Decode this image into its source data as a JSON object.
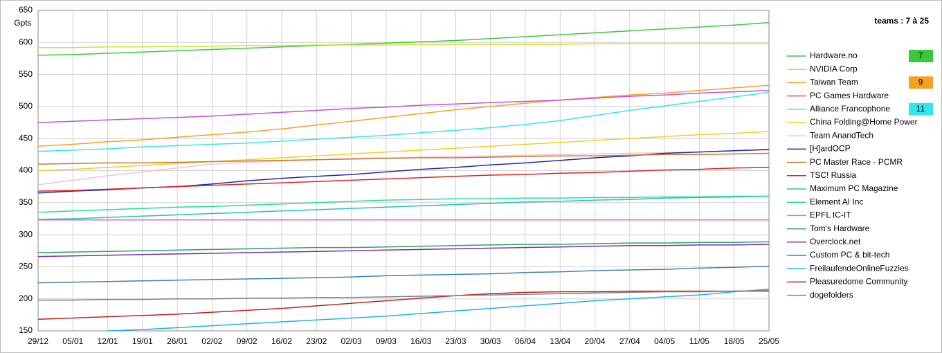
{
  "chart_data": {
    "type": "line",
    "y_label": "Gpts",
    "panel_title": "teams : 7 à 25",
    "categories": [
      "29/12",
      "05/01",
      "12/01",
      "19/01",
      "26/01",
      "02/02",
      "09/02",
      "16/02",
      "23/02",
      "02/03",
      "09/03",
      "16/03",
      "23/03",
      "30/03",
      "06/04",
      "13/04",
      "20/04",
      "27/04",
      "04/05",
      "11/05",
      "18/05",
      "25/05"
    ],
    "ylim": [
      150,
      650
    ],
    "yticks": [
      150,
      200,
      250,
      300,
      350,
      400,
      450,
      500,
      550,
      600,
      650
    ],
    "grid": true,
    "series": [
      {
        "name": "Hardware.no",
        "color": "#3cc83c",
        "badge": 7,
        "values": [
          580,
          581,
          583,
          585,
          587,
          589,
          591,
          593,
          595,
          597,
          599,
          601,
          603,
          606,
          609,
          612,
          615,
          618,
          621,
          624,
          627,
          631
        ]
      },
      {
        "name": "NVIDIA Corp",
        "color": "#c8e632",
        "values": [
          592,
          592,
          593,
          593,
          594,
          594,
          595,
          595,
          596,
          596,
          596,
          597,
          597,
          597,
          597,
          597,
          598,
          598,
          598,
          598,
          598,
          598
        ]
      },
      {
        "name": "Taiwan Team",
        "color": "#f5a020",
        "badge": 9,
        "values": [
          438,
          441,
          445,
          448,
          452,
          456,
          460,
          465,
          471,
          477,
          483,
          489,
          495,
          500,
          505,
          510,
          514,
          518,
          521,
          525,
          529,
          533
        ]
      },
      {
        "name": "PC Games Hardware",
        "color": "#c050e0",
        "badge_color": null,
        "values": [
          475,
          477,
          479,
          481,
          483,
          485,
          488,
          491,
          494,
          497,
          499,
          502,
          504,
          506,
          508,
          510,
          513,
          516,
          518,
          521,
          523,
          525
        ]
      },
      {
        "name": "Alliance Francophone",
        "color": "#32e6f0",
        "badge": 11,
        "values": [
          430,
          432,
          434,
          437,
          439,
          441,
          443,
          446,
          449,
          452,
          455,
          459,
          463,
          467,
          472,
          478,
          486,
          494,
          501,
          508,
          515,
          522
        ]
      },
      {
        "name": "China Folding@Home Power",
        "color": "#f0d020",
        "values": [
          400,
          402,
          405,
          408,
          411,
          414,
          417,
          420,
          423,
          426,
          429,
          432,
          435,
          438,
          441,
          444,
          447,
          450,
          453,
          456,
          458,
          461
        ]
      },
      {
        "name": "Team AnandTech",
        "color": "#f5c0d0",
        "values": [
          378,
          385,
          392,
          398,
          404,
          410,
          413,
          415,
          417,
          419,
          420,
          421,
          422,
          423,
          424,
          425,
          426,
          427,
          428,
          429,
          431,
          432
        ]
      },
      {
        "name": "[H]ardOCP",
        "color": "#1a2ab0",
        "values": [
          365,
          368,
          370,
          373,
          375,
          379,
          384,
          388,
          391,
          394,
          398,
          402,
          405,
          409,
          412,
          416,
          420,
          423,
          427,
          429,
          431,
          433
        ]
      },
      {
        "name": "PC Master Race - PCMR",
        "color": "#c87832",
        "values": [
          410,
          411,
          412,
          412,
          413,
          414,
          415,
          416,
          417,
          418,
          419,
          420,
          420,
          421,
          422,
          423,
          423,
          424,
          425,
          425,
          426,
          427
        ]
      },
      {
        "name": "TSC! Russia",
        "color": "#e02020",
        "values": [
          368,
          369,
          371,
          373,
          375,
          377,
          379,
          381,
          383,
          385,
          387,
          389,
          391,
          393,
          394,
          396,
          397,
          399,
          401,
          402,
          404,
          405
        ]
      },
      {
        "name": "Maximum PC Magazine",
        "color": "#20c0c0",
        "values": [
          324,
          325,
          327,
          329,
          331,
          333,
          335,
          337,
          339,
          341,
          343,
          345,
          347,
          349,
          351,
          352,
          354,
          355,
          357,
          358,
          359,
          360
        ]
      },
      {
        "name": "Element AI Inc",
        "color": "#20e090",
        "values": [
          335,
          337,
          339,
          341,
          343,
          344,
          346,
          348,
          350,
          352,
          354,
          355,
          356,
          356,
          357,
          357,
          358,
          358,
          359,
          359,
          360,
          360
        ]
      },
      {
        "name": "EPFL IC-IT",
        "color": "#e070a0",
        "values": [
          323,
          323,
          323,
          323,
          323,
          323,
          323,
          323,
          323,
          323,
          323,
          323,
          323,
          323,
          323,
          323,
          323,
          323,
          323,
          323,
          323,
          323
        ]
      },
      {
        "name": "Tom's Hardware",
        "color": "#30a060",
        "values": [
          272,
          273,
          274,
          275,
          276,
          277,
          278,
          279,
          280,
          280,
          281,
          282,
          283,
          284,
          285,
          285,
          286,
          287,
          287,
          288,
          288,
          289
        ]
      },
      {
        "name": "Overclock.net",
        "color": "#7030c0",
        "values": [
          266,
          267,
          268,
          269,
          270,
          271,
          272,
          273,
          274,
          275,
          276,
          277,
          278,
          279,
          280,
          281,
          282,
          283,
          283,
          284,
          284,
          285
        ]
      },
      {
        "name": "Custom PC & bit-tech",
        "color": "#4080b0",
        "values": [
          225,
          226,
          227,
          228,
          229,
          230,
          231,
          232,
          233,
          234,
          236,
          237,
          238,
          239,
          241,
          242,
          244,
          245,
          246,
          248,
          249,
          251
        ]
      },
      {
        "name": "FreilaufendeOnlineFuzzies",
        "color": "#20b0e8",
        "values": [
          null,
          null,
          150,
          152,
          155,
          158,
          161,
          164,
          167,
          170,
          173,
          177,
          181,
          185,
          189,
          193,
          197,
          200,
          203,
          206,
          211,
          215
        ]
      },
      {
        "name": "Pleasuredome Community",
        "color": "#c02020",
        "values": [
          168,
          170,
          172,
          174,
          176,
          179,
          182,
          185,
          189,
          193,
          197,
          201,
          205,
          208,
          210,
          211,
          211,
          212,
          212,
          212,
          212,
          212
        ]
      },
      {
        "name": "dogefolders",
        "color": "#808080",
        "values": [
          198,
          198,
          199,
          199,
          200,
          200,
          201,
          201,
          202,
          202,
          203,
          204,
          205,
          206,
          207,
          208,
          209,
          210,
          211,
          211,
          212,
          213
        ]
      }
    ]
  }
}
